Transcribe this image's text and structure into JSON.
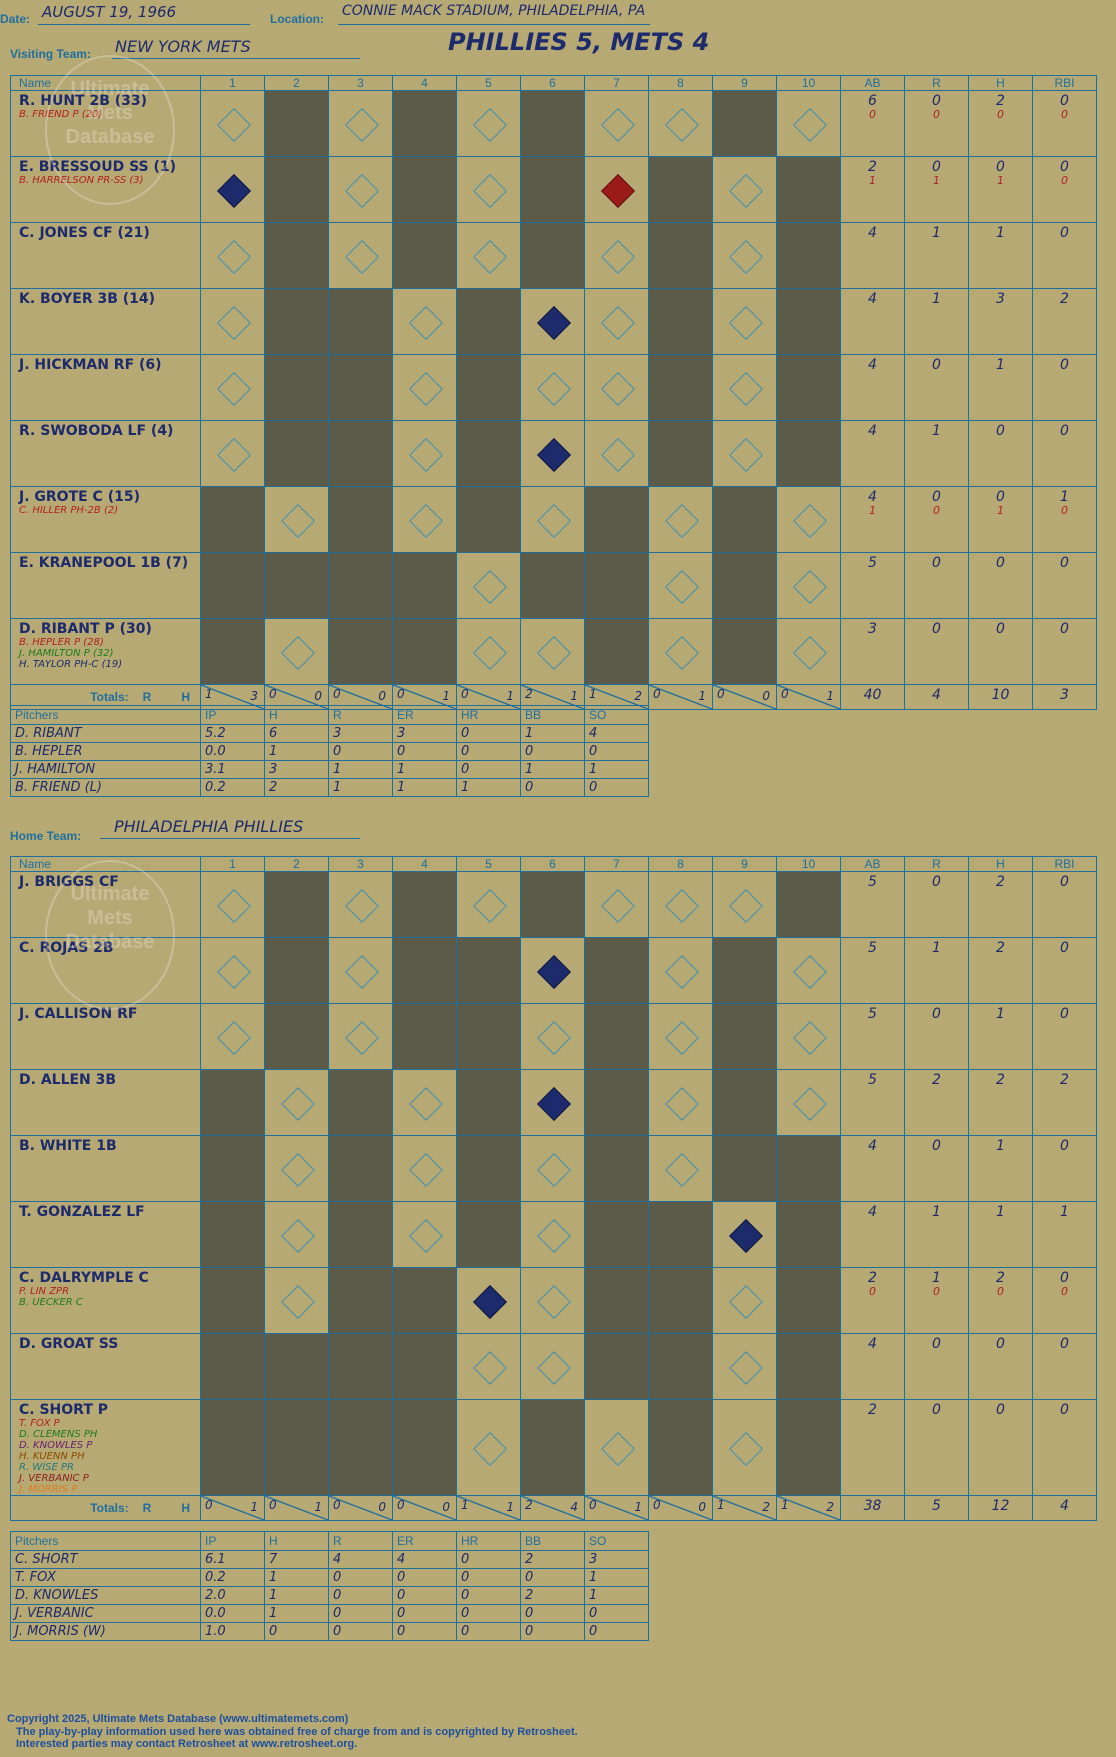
{
  "labels": {
    "date": "Date:",
    "location": "Location:",
    "visiting": "Visiting Team:",
    "home": "Home Team:",
    "name": "Name",
    "totals": "Totals:",
    "r": "R",
    "h": "H",
    "pitchers": "Pitchers"
  },
  "header": {
    "date": "AUGUST 19, 1966",
    "location": "CONNIE MACK STADIUM, PHILADELPHIA, PA",
    "result": "PHILLIES 5, METS 4",
    "visiting_team": "NEW YORK METS",
    "home_team": "PHILADELPHIA PHILLIES"
  },
  "columns": [
    "1",
    "2",
    "3",
    "4",
    "5",
    "6",
    "7",
    "8",
    "9",
    "10",
    "AB",
    "R",
    "H",
    "RBI"
  ],
  "pitcher_columns": [
    "IP",
    "H",
    "R",
    "ER",
    "HR",
    "BB",
    "SO"
  ],
  "watermark": "Ultimate Mets Database",
  "visitors": {
    "batters": [
      {
        "name": "R. HUNT 2B (33)",
        "subs": [
          {
            "text": "B. FRIEND P (20)",
            "color": "#b21f1f"
          }
        ],
        "ab": "6",
        "r": "0",
        "h": "2",
        "rbi": "0",
        "ab2": "0",
        "r2": "0",
        "h2": "0",
        "rbi2": "0"
      },
      {
        "name": "E. BRESSOUD SS (1)",
        "subs": [
          {
            "text": "B. HARRELSON PR-SS (3)",
            "color": "#b21f1f"
          }
        ],
        "ab": "2",
        "r": "0",
        "h": "0",
        "rbi": "0",
        "ab2": "1",
        "r2": "1",
        "h2": "1",
        "rbi2": "0"
      },
      {
        "name": "C. JONES CF (21)",
        "subs": [],
        "ab": "4",
        "r": "1",
        "h": "1",
        "rbi": "0"
      },
      {
        "name": "K. BOYER 3B (14)",
        "subs": [],
        "ab": "4",
        "r": "1",
        "h": "3",
        "rbi": "2"
      },
      {
        "name": "J. HICKMAN RF (6)",
        "subs": [],
        "ab": "4",
        "r": "0",
        "h": "1",
        "rbi": "0"
      },
      {
        "name": "R. SWOBODA LF (4)",
        "subs": [],
        "ab": "4",
        "r": "1",
        "h": "0",
        "rbi": "0"
      },
      {
        "name": "J. GROTE C (15)",
        "subs": [
          {
            "text": "C. HILLER PH-2B (2)",
            "color": "#b21f1f"
          }
        ],
        "ab": "4",
        "r": "0",
        "h": "0",
        "rbi": "1",
        "ab2": "1",
        "r2": "0",
        "h2": "1",
        "rbi2": "0"
      },
      {
        "name": "E. KRANEPOOL 1B (7)",
        "subs": [],
        "ab": "5",
        "r": "0",
        "h": "0",
        "rbi": "0"
      },
      {
        "name": "D. RIBANT P (30)",
        "subs": [
          {
            "text": "B. HEPLER P (28)",
            "color": "#b21f1f"
          },
          {
            "text": "J. HAMILTON P (32)",
            "color": "#1f7a1f"
          },
          {
            "text": "H. TAYLOR PH-C (19)",
            "color": "#1d2a6b"
          }
        ],
        "ab": "3",
        "r": "0",
        "h": "0",
        "rbi": "0"
      }
    ],
    "totals": {
      "innings": [
        {
          "r": "1",
          "h": "3"
        },
        {
          "r": "0",
          "h": "0"
        },
        {
          "r": "0",
          "h": "0"
        },
        {
          "r": "0",
          "h": "1"
        },
        {
          "r": "0",
          "h": "1"
        },
        {
          "r": "2",
          "h": "1"
        },
        {
          "r": "1",
          "h": "2"
        },
        {
          "r": "0",
          "h": "1"
        },
        {
          "r": "0",
          "h": "0"
        },
        {
          "r": "0",
          "h": "1"
        }
      ],
      "ab": "40",
      "r": "4",
      "h": "10",
      "rbi": "3"
    },
    "pitchers": [
      {
        "name": "D. RIBANT",
        "ip": "5.2",
        "h": "6",
        "r": "3",
        "er": "3",
        "hr": "0",
        "bb": "1",
        "so": "4"
      },
      {
        "name": "B. HEPLER",
        "ip": "0.0",
        "h": "1",
        "r": "0",
        "er": "0",
        "hr": "0",
        "bb": "0",
        "so": "0"
      },
      {
        "name": "J. HAMILTON",
        "ip": "3.1",
        "h": "3",
        "r": "1",
        "er": "1",
        "hr": "0",
        "bb": "1",
        "so": "1"
      },
      {
        "name": "B. FRIEND (L)",
        "ip": "0.2",
        "h": "2",
        "r": "1",
        "er": "1",
        "hr": "1",
        "bb": "0",
        "so": "0"
      }
    ]
  },
  "home": {
    "batters": [
      {
        "name": "J. BRIGGS CF",
        "subs": [],
        "ab": "5",
        "r": "0",
        "h": "2",
        "rbi": "0"
      },
      {
        "name": "C. ROJAS 2B",
        "subs": [],
        "ab": "5",
        "r": "1",
        "h": "2",
        "rbi": "0"
      },
      {
        "name": "J. CALLISON RF",
        "subs": [],
        "ab": "5",
        "r": "0",
        "h": "1",
        "rbi": "0"
      },
      {
        "name": "D. ALLEN 3B",
        "subs": [],
        "ab": "5",
        "r": "2",
        "h": "2",
        "rbi": "2"
      },
      {
        "name": "B. WHITE 1B",
        "subs": [],
        "ab": "4",
        "r": "0",
        "h": "1",
        "rbi": "0"
      },
      {
        "name": "T. GONZALEZ LF",
        "subs": [],
        "ab": "4",
        "r": "1",
        "h": "1",
        "rbi": "1"
      },
      {
        "name": "C. DALRYMPLE C",
        "subs": [
          {
            "text": "P. LIN ZPR",
            "color": "#b21f1f"
          },
          {
            "text": "B. UECKER C",
            "color": "#1f7a1f"
          }
        ],
        "ab": "2",
        "r": "1",
        "h": "2",
        "rbi": "0",
        "ab2": "0",
        "r2": "0",
        "h2": "0",
        "rbi2": "0"
      },
      {
        "name": "D. GROAT SS",
        "subs": [],
        "ab": "4",
        "r": "0",
        "h": "0",
        "rbi": "0"
      },
      {
        "name": "C. SHORT P",
        "subs": [
          {
            "text": "T. FOX P",
            "color": "#b21f1f"
          },
          {
            "text": "D. CLEMENS PH",
            "color": "#1f7a1f"
          },
          {
            "text": "D. KNOWLES P",
            "color": "#6b1d6b"
          },
          {
            "text": "H. KUENN PH",
            "color": "#8a4a00"
          },
          {
            "text": "R. WISE PR",
            "color": "#1f7a7a"
          },
          {
            "text": "J. VERBANIC P",
            "color": "#8a1d1d"
          },
          {
            "text": "J. MORRIS P",
            "color": "#e07a1f"
          }
        ],
        "ab": "2",
        "r": "0",
        "h": "0",
        "rbi": "0"
      }
    ],
    "totals": {
      "innings": [
        {
          "r": "0",
          "h": "1"
        },
        {
          "r": "0",
          "h": "1"
        },
        {
          "r": "0",
          "h": "0"
        },
        {
          "r": "0",
          "h": "0"
        },
        {
          "r": "1",
          "h": "1"
        },
        {
          "r": "2",
          "h": "4"
        },
        {
          "r": "0",
          "h": "1"
        },
        {
          "r": "0",
          "h": "0"
        },
        {
          "r": "1",
          "h": "2"
        },
        {
          "r": "1",
          "h": "2"
        }
      ],
      "ab": "38",
      "r": "5",
      "h": "12",
      "rbi": "4"
    },
    "pitchers": [
      {
        "name": "C. SHORT",
        "ip": "6.1",
        "h": "7",
        "r": "4",
        "er": "4",
        "hr": "0",
        "bb": "2",
        "so": "3"
      },
      {
        "name": "T. FOX",
        "ip": "0.2",
        "h": "1",
        "r": "0",
        "er": "0",
        "hr": "0",
        "bb": "0",
        "so": "1"
      },
      {
        "name": "D. KNOWLES",
        "ip": "2.0",
        "h": "1",
        "r": "0",
        "er": "0",
        "hr": "0",
        "bb": "2",
        "so": "1"
      },
      {
        "name": "J. VERBANIC",
        "ip": "0.0",
        "h": "1",
        "r": "0",
        "er": "0",
        "hr": "0",
        "bb": "0",
        "so": "0"
      },
      {
        "name": "J. MORRIS (W)",
        "ip": "1.0",
        "h": "0",
        "r": "0",
        "er": "0",
        "hr": "0",
        "bb": "0",
        "so": "0"
      }
    ]
  },
  "footer": {
    "copyright": "Copyright 2025, Ultimate Mets Database (www.ultimatemets.com)",
    "line2": "The play-by-play information used here was obtained free of charge from and is copyrighted by Retrosheet.",
    "line3": "Interested parties may contact Retrosheet at www.retrosheet.org."
  }
}
